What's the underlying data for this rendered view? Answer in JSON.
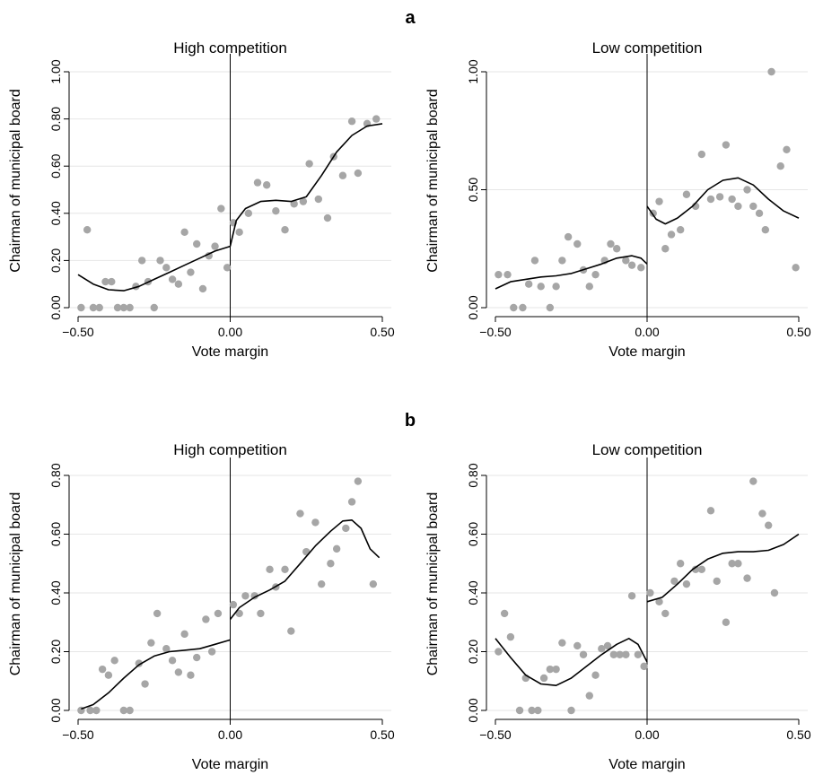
{
  "figure": {
    "panel_labels": [
      "a",
      "b"
    ]
  },
  "chart_data": [
    {
      "type": "scatter",
      "panel": "a",
      "title": "High competition",
      "xlabel": "Vote margin",
      "ylabel": "Chairman of municipal board",
      "xlim": [
        -0.5,
        0.5
      ],
      "ylim": [
        0,
        1
      ],
      "xticks": [
        -0.5,
        0,
        0.5
      ],
      "xtick_labels": [
        "−0.50",
        "0.00",
        "0.50"
      ],
      "yticks": [
        0,
        0.2,
        0.4,
        0.6,
        0.8,
        1.0
      ],
      "ytick_labels": [
        "0.00",
        "0.20",
        "0.40",
        "0.60",
        "0.80",
        "1.00"
      ],
      "gridlines": "horizontal",
      "cutoff_x": 0,
      "points": [
        [
          -0.49,
          0.0
        ],
        [
          -0.47,
          0.33
        ],
        [
          -0.45,
          0.0
        ],
        [
          -0.43,
          0.0
        ],
        [
          -0.41,
          0.11
        ],
        [
          -0.39,
          0.11
        ],
        [
          -0.37,
          0.0
        ],
        [
          -0.35,
          0.0
        ],
        [
          -0.33,
          0.0
        ],
        [
          -0.31,
          0.09
        ],
        [
          -0.29,
          0.2
        ],
        [
          -0.27,
          0.11
        ],
        [
          -0.25,
          0.0
        ],
        [
          -0.23,
          0.2
        ],
        [
          -0.21,
          0.17
        ],
        [
          -0.19,
          0.12
        ],
        [
          -0.17,
          0.1
        ],
        [
          -0.15,
          0.32
        ],
        [
          -0.13,
          0.15
        ],
        [
          -0.11,
          0.27
        ],
        [
          -0.09,
          0.08
        ],
        [
          -0.07,
          0.22
        ],
        [
          -0.05,
          0.26
        ],
        [
          -0.03,
          0.42
        ],
        [
          -0.01,
          0.17
        ],
        [
          0.01,
          0.36
        ],
        [
          0.03,
          0.32
        ],
        [
          0.06,
          0.4
        ],
        [
          0.09,
          0.53
        ],
        [
          0.12,
          0.52
        ],
        [
          0.15,
          0.41
        ],
        [
          0.18,
          0.33
        ],
        [
          0.21,
          0.44
        ],
        [
          0.24,
          0.45
        ],
        [
          0.26,
          0.61
        ],
        [
          0.29,
          0.46
        ],
        [
          0.32,
          0.38
        ],
        [
          0.34,
          0.64
        ],
        [
          0.37,
          0.56
        ],
        [
          0.4,
          0.79
        ],
        [
          0.42,
          0.57
        ],
        [
          0.45,
          0.78
        ],
        [
          0.48,
          0.8
        ]
      ],
      "fit_left": [
        [
          -0.5,
          0.14
        ],
        [
          -0.45,
          0.1
        ],
        [
          -0.4,
          0.076
        ],
        [
          -0.35,
          0.072
        ],
        [
          -0.3,
          0.09
        ],
        [
          -0.25,
          0.12
        ],
        [
          -0.2,
          0.15
        ],
        [
          -0.15,
          0.18
        ],
        [
          -0.1,
          0.21
        ],
        [
          -0.05,
          0.24
        ],
        [
          0.0,
          0.26
        ]
      ],
      "fit_right": [
        [
          0.0,
          0.26
        ],
        [
          0.02,
          0.37
        ],
        [
          0.05,
          0.42
        ],
        [
          0.1,
          0.45
        ],
        [
          0.15,
          0.455
        ],
        [
          0.2,
          0.45
        ],
        [
          0.25,
          0.47
        ],
        [
          0.3,
          0.56
        ],
        [
          0.35,
          0.66
        ],
        [
          0.4,
          0.73
        ],
        [
          0.45,
          0.77
        ],
        [
          0.5,
          0.78
        ]
      ]
    },
    {
      "type": "scatter",
      "panel": "a",
      "title": "Low competition",
      "xlabel": "Vote margin",
      "ylabel": "Chairman of municipal board",
      "xlim": [
        -0.5,
        0.5
      ],
      "ylim": [
        0,
        1
      ],
      "xticks": [
        -0.5,
        0,
        0.5
      ],
      "xtick_labels": [
        "−0.50",
        "0.00",
        "0.50"
      ],
      "yticks": [
        0,
        0.5,
        1.0
      ],
      "ytick_labels": [
        "0.00",
        "0.50",
        "1.00"
      ],
      "gridlines": "horizontal",
      "cutoff_x": 0,
      "points": [
        [
          -0.49,
          0.14
        ],
        [
          -0.46,
          0.14
        ],
        [
          -0.44,
          0.0
        ],
        [
          -0.41,
          0.0
        ],
        [
          -0.39,
          0.1
        ],
        [
          -0.37,
          0.2
        ],
        [
          -0.35,
          0.09
        ],
        [
          -0.32,
          0.0
        ],
        [
          -0.3,
          0.09
        ],
        [
          -0.28,
          0.2
        ],
        [
          -0.26,
          0.3
        ],
        [
          -0.23,
          0.27
        ],
        [
          -0.21,
          0.16
        ],
        [
          -0.19,
          0.09
        ],
        [
          -0.17,
          0.14
        ],
        [
          -0.14,
          0.2
        ],
        [
          -0.12,
          0.27
        ],
        [
          -0.1,
          0.25
        ],
        [
          -0.07,
          0.2
        ],
        [
          -0.05,
          0.18
        ],
        [
          -0.02,
          0.17
        ],
        [
          0.02,
          0.4
        ],
        [
          0.04,
          0.45
        ],
        [
          0.06,
          0.25
        ],
        [
          0.08,
          0.31
        ],
        [
          0.11,
          0.33
        ],
        [
          0.13,
          0.48
        ],
        [
          0.16,
          0.43
        ],
        [
          0.18,
          0.65
        ],
        [
          0.21,
          0.46
        ],
        [
          0.24,
          0.47
        ],
        [
          0.26,
          0.69
        ],
        [
          0.28,
          0.46
        ],
        [
          0.3,
          0.43
        ],
        [
          0.33,
          0.5
        ],
        [
          0.35,
          0.43
        ],
        [
          0.37,
          0.4
        ],
        [
          0.39,
          0.33
        ],
        [
          0.41,
          1.0
        ],
        [
          0.44,
          0.6
        ],
        [
          0.46,
          0.67
        ],
        [
          0.49,
          0.17
        ]
      ],
      "fit_left": [
        [
          -0.5,
          0.08
        ],
        [
          -0.45,
          0.11
        ],
        [
          -0.4,
          0.12
        ],
        [
          -0.35,
          0.13
        ],
        [
          -0.3,
          0.135
        ],
        [
          -0.25,
          0.145
        ],
        [
          -0.2,
          0.165
        ],
        [
          -0.15,
          0.185
        ],
        [
          -0.1,
          0.21
        ],
        [
          -0.05,
          0.22
        ],
        [
          -0.02,
          0.21
        ],
        [
          0.0,
          0.185
        ]
      ],
      "fit_right": [
        [
          0.0,
          0.43
        ],
        [
          0.03,
          0.375
        ],
        [
          0.06,
          0.355
        ],
        [
          0.1,
          0.38
        ],
        [
          0.15,
          0.43
        ],
        [
          0.2,
          0.5
        ],
        [
          0.25,
          0.54
        ],
        [
          0.3,
          0.55
        ],
        [
          0.35,
          0.52
        ],
        [
          0.4,
          0.46
        ],
        [
          0.45,
          0.41
        ],
        [
          0.5,
          0.38
        ]
      ]
    },
    {
      "type": "scatter",
      "panel": "b",
      "title": "High competition",
      "xlabel": "Vote margin",
      "ylabel": "Chairman of municipal board",
      "xlim": [
        -0.5,
        0.5
      ],
      "ylim": [
        0,
        0.8
      ],
      "xticks": [
        -0.5,
        0,
        0.5
      ],
      "xtick_labels": [
        "−0.50",
        "0.00",
        "0.50"
      ],
      "yticks": [
        0,
        0.2,
        0.4,
        0.6,
        0.8
      ],
      "ytick_labels": [
        "0.00",
        "0.20",
        "0.40",
        "0.60",
        "0.80"
      ],
      "gridlines": "horizontal",
      "cutoff_x": 0,
      "points": [
        [
          -0.49,
          0.0
        ],
        [
          -0.46,
          0.0
        ],
        [
          -0.44,
          0.0
        ],
        [
          -0.42,
          0.14
        ],
        [
          -0.4,
          0.12
        ],
        [
          -0.38,
          0.17
        ],
        [
          -0.35,
          0.0
        ],
        [
          -0.33,
          0.0
        ],
        [
          -0.3,
          0.16
        ],
        [
          -0.28,
          0.09
        ],
        [
          -0.26,
          0.23
        ],
        [
          -0.24,
          0.33
        ],
        [
          -0.21,
          0.21
        ],
        [
          -0.19,
          0.17
        ],
        [
          -0.17,
          0.13
        ],
        [
          -0.15,
          0.26
        ],
        [
          -0.13,
          0.12
        ],
        [
          -0.11,
          0.18
        ],
        [
          -0.08,
          0.31
        ],
        [
          -0.06,
          0.2
        ],
        [
          -0.04,
          0.33
        ],
        [
          0.01,
          0.36
        ],
        [
          0.03,
          0.33
        ],
        [
          0.05,
          0.39
        ],
        [
          0.08,
          0.39
        ],
        [
          0.1,
          0.33
        ],
        [
          0.13,
          0.48
        ],
        [
          0.15,
          0.42
        ],
        [
          0.18,
          0.48
        ],
        [
          0.2,
          0.27
        ],
        [
          0.23,
          0.67
        ],
        [
          0.25,
          0.54
        ],
        [
          0.28,
          0.64
        ],
        [
          0.3,
          0.43
        ],
        [
          0.33,
          0.5
        ],
        [
          0.35,
          0.55
        ],
        [
          0.38,
          0.62
        ],
        [
          0.4,
          0.71
        ],
        [
          0.42,
          0.78
        ],
        [
          0.47,
          0.43
        ]
      ],
      "fit_left": [
        [
          -0.49,
          0.005
        ],
        [
          -0.45,
          0.02
        ],
        [
          -0.4,
          0.06
        ],
        [
          -0.35,
          0.11
        ],
        [
          -0.3,
          0.155
        ],
        [
          -0.25,
          0.185
        ],
        [
          -0.2,
          0.2
        ],
        [
          -0.15,
          0.205
        ],
        [
          -0.1,
          0.21
        ],
        [
          -0.05,
          0.225
        ],
        [
          0.0,
          0.24
        ]
      ],
      "fit_right": [
        [
          0.0,
          0.31
        ],
        [
          0.03,
          0.35
        ],
        [
          0.08,
          0.385
        ],
        [
          0.13,
          0.41
        ],
        [
          0.18,
          0.44
        ],
        [
          0.23,
          0.5
        ],
        [
          0.28,
          0.56
        ],
        [
          0.33,
          0.61
        ],
        [
          0.37,
          0.645
        ],
        [
          0.4,
          0.648
        ],
        [
          0.43,
          0.62
        ],
        [
          0.46,
          0.55
        ],
        [
          0.49,
          0.52
        ]
      ]
    },
    {
      "type": "scatter",
      "panel": "b",
      "title": "Low competition",
      "xlabel": "Vote margin",
      "ylabel": "Chairman of municipal board",
      "xlim": [
        -0.5,
        0.5
      ],
      "ylim": [
        0,
        0.8
      ],
      "xticks": [
        -0.5,
        0,
        0.5
      ],
      "xtick_labels": [
        "−0.50",
        "0.00",
        "0.50"
      ],
      "yticks": [
        0,
        0.2,
        0.4,
        0.6,
        0.8
      ],
      "ytick_labels": [
        "0.00",
        "0.20",
        "0.40",
        "0.60",
        "0.80"
      ],
      "gridlines": "horizontal",
      "cutoff_x": 0,
      "points": [
        [
          -0.49,
          0.2
        ],
        [
          -0.47,
          0.33
        ],
        [
          -0.45,
          0.25
        ],
        [
          -0.42,
          0.0
        ],
        [
          -0.4,
          0.11
        ],
        [
          -0.38,
          0.0
        ],
        [
          -0.36,
          0.0
        ],
        [
          -0.34,
          0.11
        ],
        [
          -0.32,
          0.14
        ],
        [
          -0.3,
          0.14
        ],
        [
          -0.28,
          0.23
        ],
        [
          -0.25,
          0.0
        ],
        [
          -0.23,
          0.22
        ],
        [
          -0.21,
          0.19
        ],
        [
          -0.19,
          0.05
        ],
        [
          -0.17,
          0.12
        ],
        [
          -0.15,
          0.21
        ],
        [
          -0.13,
          0.22
        ],
        [
          -0.11,
          0.19
        ],
        [
          -0.09,
          0.19
        ],
        [
          -0.07,
          0.19
        ],
        [
          -0.05,
          0.39
        ],
        [
          -0.03,
          0.19
        ],
        [
          -0.01,
          0.15
        ],
        [
          0.01,
          0.4
        ],
        [
          0.04,
          0.37
        ],
        [
          0.06,
          0.33
        ],
        [
          0.09,
          0.44
        ],
        [
          0.11,
          0.5
        ],
        [
          0.13,
          0.43
        ],
        [
          0.16,
          0.48
        ],
        [
          0.18,
          0.48
        ],
        [
          0.21,
          0.68
        ],
        [
          0.23,
          0.44
        ],
        [
          0.26,
          0.3
        ],
        [
          0.28,
          0.5
        ],
        [
          0.3,
          0.5
        ],
        [
          0.33,
          0.45
        ],
        [
          0.35,
          0.78
        ],
        [
          0.38,
          0.67
        ],
        [
          0.4,
          0.63
        ],
        [
          0.42,
          0.4
        ]
      ],
      "fit_left": [
        [
          -0.5,
          0.245
        ],
        [
          -0.45,
          0.18
        ],
        [
          -0.4,
          0.12
        ],
        [
          -0.35,
          0.09
        ],
        [
          -0.3,
          0.085
        ],
        [
          -0.25,
          0.11
        ],
        [
          -0.2,
          0.15
        ],
        [
          -0.15,
          0.19
        ],
        [
          -0.1,
          0.225
        ],
        [
          -0.06,
          0.245
        ],
        [
          -0.03,
          0.225
        ],
        [
          0.0,
          0.165
        ]
      ],
      "fit_right": [
        [
          0.0,
          0.37
        ],
        [
          0.05,
          0.385
        ],
        [
          0.1,
          0.43
        ],
        [
          0.15,
          0.48
        ],
        [
          0.2,
          0.515
        ],
        [
          0.25,
          0.535
        ],
        [
          0.3,
          0.54
        ],
        [
          0.35,
          0.54
        ],
        [
          0.4,
          0.545
        ],
        [
          0.45,
          0.565
        ],
        [
          0.5,
          0.6
        ]
      ]
    }
  ]
}
